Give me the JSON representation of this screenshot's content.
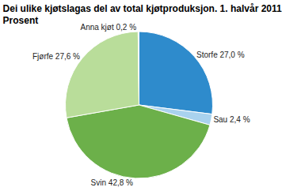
{
  "chart_data": {
    "type": "pie",
    "title": "Dei ulike kjøtslagas del av total kjøtproduksjon. 1. halvår 2011.\nProsent",
    "categories": [
      "Storfe",
      "Sau",
      "Svin",
      "Fjørfe",
      "Anna kjøt"
    ],
    "values": [
      27.0,
      2.4,
      42.8,
      27.6,
      0.2
    ],
    "value_labels": [
      "Storfe 27,0 %",
      "Sau 2,4 %",
      "Svin 42,8 %",
      "Fjørfe 27,6 %",
      "Anna kjøt 0,2 %"
    ],
    "colors": [
      "#2e8bcc",
      "#a9d2ee",
      "#6cb04a",
      "#b9dd9a",
      "#e3d59a"
    ],
    "data_labels": true
  }
}
